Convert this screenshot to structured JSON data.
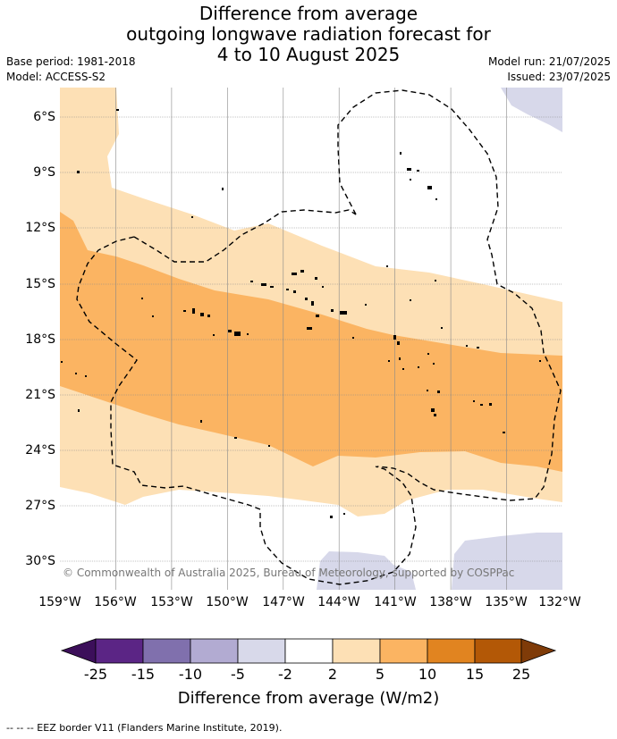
{
  "title": {
    "line1": "Difference from average",
    "line2": "outgoing longwave radiation forecast for",
    "line3": "4 to 10 August 2025"
  },
  "meta": {
    "base_period": "Base period: 1981-2018",
    "model": "Model: ACCESS-S2",
    "model_run": "Model run: 21/07/2025",
    "issued": "Issued: 23/07/2025"
  },
  "map": {
    "lat_labels": [
      "6°S",
      "9°S",
      "12°S",
      "15°S",
      "18°S",
      "21°S",
      "24°S",
      "27°S",
      "30°S"
    ],
    "lon_labels": [
      "159°W",
      "156°W",
      "153°W",
      "150°W",
      "147°W",
      "144°W",
      "141°W",
      "138°W",
      "135°W",
      "132°W"
    ],
    "extent": {
      "lon": [
        -159,
        -132
      ],
      "lat": [
        -4.5,
        -31.5
      ]
    },
    "copyright": "© Commonwealth of Australia 2025, Bureau of Meteorology, supported by COSPPac",
    "colors": {
      "light_orange": "#fde0b5",
      "medium_orange": "#fbb462",
      "light_purple": "#d7d8ea",
      "land": "#000000",
      "eez": "#000000"
    }
  },
  "colorbar": {
    "ticks": [
      "-25",
      "-15",
      "-10",
      "-5",
      "-2",
      "2",
      "5",
      "10",
      "15",
      "25"
    ],
    "colors": [
      "#3c0f5a",
      "#5b2585",
      "#8070ad",
      "#b2abd2",
      "#d8d9ea",
      "#ffffff",
      "#fde0b5",
      "#fbb462",
      "#e18420",
      "#b35806",
      "#7f3b08"
    ],
    "title": "Difference from average (W/m2)"
  },
  "footer": "-- -- -- EEZ border V11 (Flanders Marine Institute, 2019)."
}
